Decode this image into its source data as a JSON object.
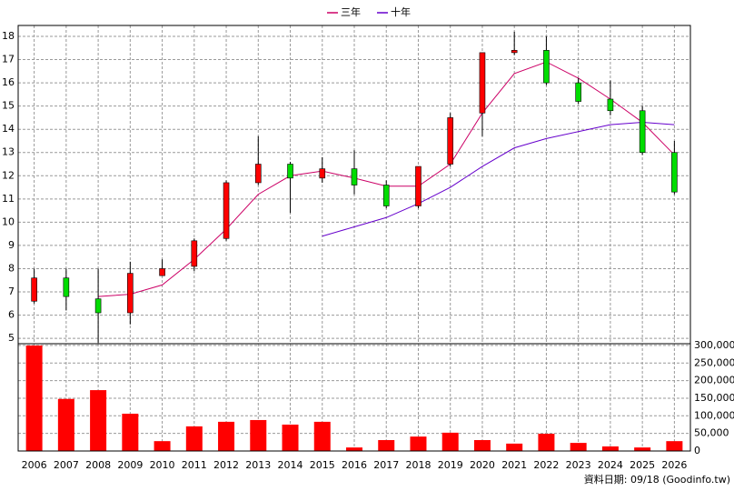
{
  "chart_data": [
    {
      "type": "candlestick",
      "open": [
        6.6,
        7.6,
        6.7,
        6.1,
        7.7,
        8.1,
        9.3,
        11.7,
        12.5,
        11.9,
        12.3,
        11.6,
        10.7,
        12.5,
        14.7,
        17.3,
        17.4,
        16.0,
        15.3,
        14.8,
        13.0
      ],
      "high": [
        8.0,
        8.0,
        8.0,
        8.3,
        8.4,
        9.3,
        11.8,
        13.7,
        12.6,
        12.8,
        13.1,
        11.8,
        12.4,
        14.7,
        17.3,
        18.2,
        18.0,
        16.2,
        16.1,
        15.0,
        13.5
      ],
      "low": [
        6.5,
        6.2,
        4.8,
        5.6,
        7.7,
        7.9,
        9.2,
        11.6,
        10.4,
        11.7,
        11.2,
        10.6,
        10.6,
        12.4,
        13.7,
        17.2,
        15.9,
        15.1,
        14.6,
        12.9,
        11.2
      ],
      "close": [
        7.6,
        6.8,
        6.1,
        7.8,
        8.0,
        9.2,
        11.7,
        12.5,
        11.9,
        12.3,
        11.6,
        10.7,
        12.4,
        14.5,
        17.3,
        17.4,
        16.0,
        15.2,
        14.8,
        13.0,
        11.3
      ],
      "up_color": "#ff0000",
      "down_color": "#00dd00",
      "series": [
        {
          "name": "三年",
          "color": "#cc0066",
          "values": [
            null,
            null,
            6.8,
            6.9,
            7.3,
            8.4,
            9.7,
            11.2,
            12.0,
            12.2,
            11.9,
            11.55,
            11.55,
            12.5,
            14.7,
            16.4,
            16.9,
            16.2,
            15.3,
            14.3,
            12.9
          ]
        },
        {
          "name": "十年",
          "color": "#6600cc",
          "values": [
            null,
            null,
            null,
            null,
            null,
            null,
            null,
            null,
            null,
            9.4,
            9.8,
            10.2,
            10.8,
            11.5,
            12.4,
            13.2,
            13.6,
            13.9,
            14.2,
            14.3,
            14.2
          ]
        }
      ],
      "ylim": [
        4.77,
        18.47
      ],
      "yticks": [
        5,
        6,
        7,
        8,
        9,
        10,
        11,
        12,
        13,
        14,
        15,
        16,
        17,
        18
      ],
      "grid": true
    },
    {
      "type": "bar",
      "categories": [
        "2006",
        "2007",
        "2008",
        "2009",
        "2010",
        "2011",
        "2012",
        "2013",
        "2014",
        "2015",
        "2016",
        "2017",
        "2018",
        "2019",
        "2020",
        "2021",
        "2022",
        "2023",
        "2024",
        "2025",
        "2026"
      ],
      "values": [
        300000,
        148000,
        173000,
        106000,
        28000,
        70000,
        83000,
        88000,
        75000,
        83000,
        10000,
        31000,
        41000,
        52000,
        31000,
        21000,
        49000,
        23000,
        13000,
        10000,
        28000
      ],
      "color": "#ff0000",
      "ylim": [
        0,
        305000
      ],
      "yticks": [
        0,
        {
          "value": 50000,
          "label": "50,000"
        },
        {
          "value": 100000,
          "label": "100,000"
        },
        {
          "value": 150000,
          "label": "150,000"
        },
        {
          "value": 200000,
          "label": "200,000"
        },
        {
          "value": 250000,
          "label": "250,000"
        },
        {
          "value": 300000,
          "label": "300,000"
        }
      ],
      "grid": true,
      "footnote": "資料日期: 09/18 (Goodinfo.tw)"
    }
  ]
}
